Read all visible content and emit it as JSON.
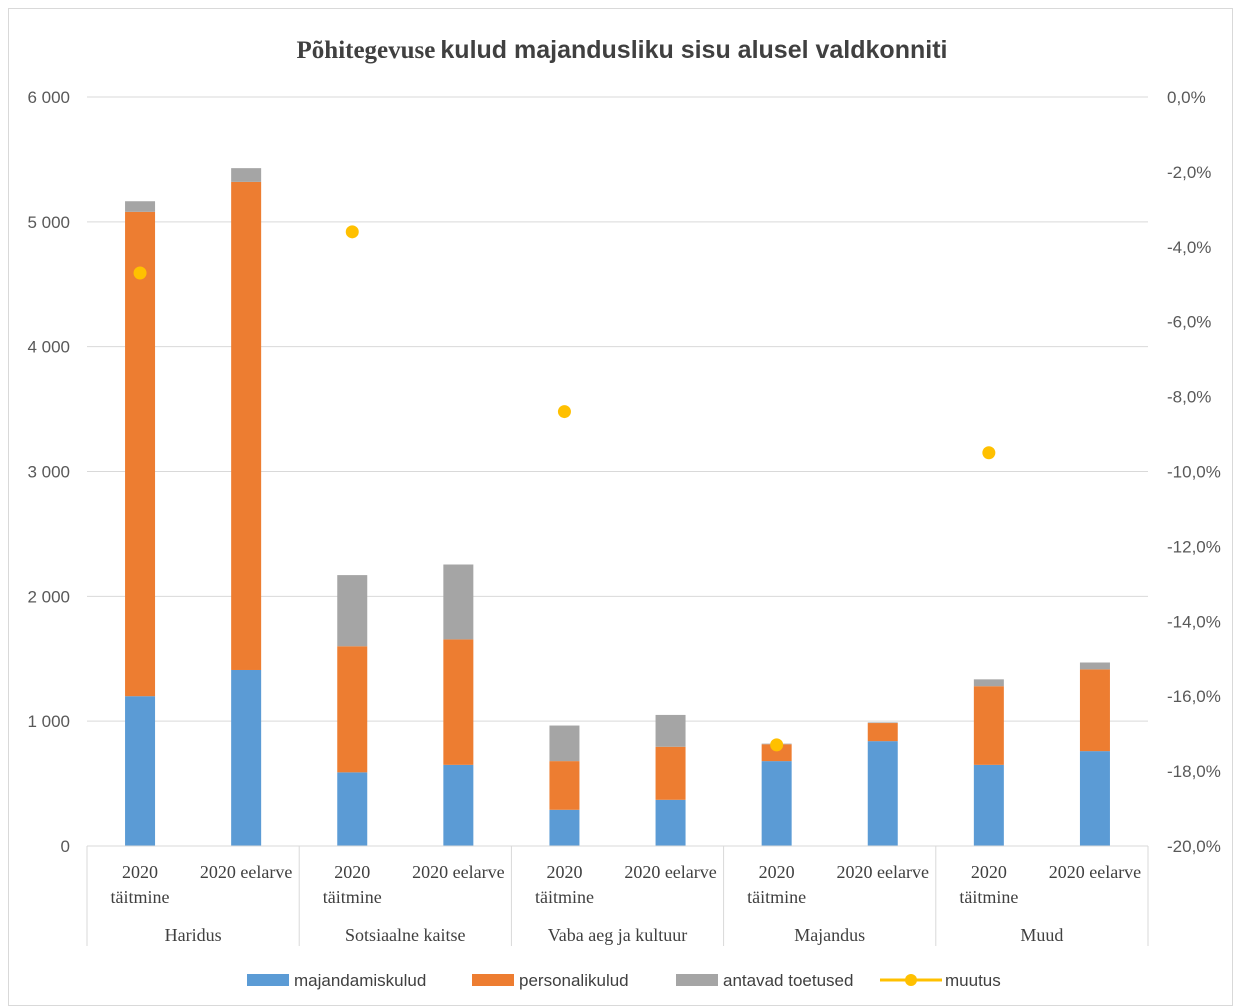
{
  "chart_data": {
    "type": "bar",
    "title_serif": "Põhitegevuse",
    "title_sans": "kulud majandusliku sisu alusel valdkonniti",
    "stacked": true,
    "groups": [
      "Haridus",
      "Sotsiaalne kaitse",
      "Vaba aeg ja kultuur",
      "Majandus",
      "Muud"
    ],
    "categories": [
      [
        "2020",
        "täitmine"
      ],
      [
        "2020 eelarve"
      ],
      [
        "2020",
        "täitmine"
      ],
      [
        "2020 eelarve"
      ],
      [
        "2020",
        "täitmine"
      ],
      [
        "2020 eelarve"
      ],
      [
        "2020",
        "täitmine"
      ],
      [
        "2020 eelarve"
      ],
      [
        "2020",
        "täitmine"
      ],
      [
        "2020 eelarve"
      ]
    ],
    "series": [
      {
        "name": "majandamiskulud",
        "color": "#5b9bd5",
        "values": [
          1200,
          1410,
          590,
          650,
          290,
          370,
          680,
          840,
          650,
          760
        ]
      },
      {
        "name": "personalikulud",
        "color": "#ed7d31",
        "values": [
          3880,
          3910,
          1010,
          1005,
          390,
          425,
          135,
          145,
          630,
          655
        ]
      },
      {
        "name": "antavad toetused",
        "color": "#a5a5a5",
        "values": [
          85,
          110,
          570,
          600,
          285,
          255,
          5,
          5,
          55,
          55
        ]
      }
    ],
    "line_series": {
      "name": "muutus",
      "color": "#ffc000",
      "points": [
        {
          "category_index": 0,
          "value": -4.7
        },
        {
          "category_index": 2,
          "value": -3.6
        },
        {
          "category_index": 4,
          "value": -8.4
        },
        {
          "category_index": 6,
          "value": -17.3
        },
        {
          "category_index": 8,
          "value": -9.5
        }
      ]
    },
    "y_left": {
      "min": 0,
      "max": 6000,
      "ticks": [
        "0",
        "1 000",
        "2 000",
        "3 000",
        "4 000",
        "5 000",
        "6 000"
      ]
    },
    "y_right": {
      "min": -20,
      "max": 0,
      "ticks": [
        "-20,0%",
        "-18,0%",
        "-16,0%",
        "-14,0%",
        "-12,0%",
        "-10,0%",
        "-8,0%",
        "-6,0%",
        "-4,0%",
        "-2,0%",
        "0,0%"
      ]
    },
    "grid": true,
    "legend_position": "bottom",
    "legend": [
      "majandamiskulud",
      "personalikulud",
      "antavad toetused",
      "muutus"
    ],
    "gridline_color": "#d9d9d9",
    "axis_text_color": "#595959"
  }
}
